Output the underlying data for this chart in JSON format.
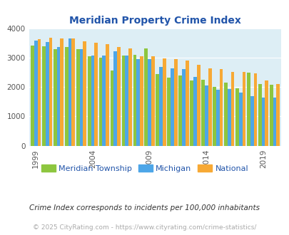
{
  "title": "Meridian Property Crime Index",
  "subtitle": "Crime Index corresponds to incidents per 100,000 inhabitants",
  "footer": "© 2025 CityRating.com - https://www.cityrating.com/crime-statistics/",
  "years": [
    1999,
    2000,
    2001,
    2002,
    2003,
    2004,
    2005,
    2006,
    2007,
    2008,
    2009,
    2010,
    2011,
    2012,
    2013,
    2014,
    2015,
    2016,
    2017,
    2018,
    2019,
    2020
  ],
  "meridian": [
    3400,
    3380,
    3280,
    3350,
    3280,
    3050,
    3000,
    2550,
    3060,
    3090,
    3300,
    2450,
    2310,
    2390,
    2230,
    2250,
    2010,
    2150,
    1950,
    2490,
    2100,
    2080
  ],
  "michigan": [
    3580,
    3540,
    3350,
    3650,
    3280,
    3060,
    3080,
    3220,
    3060,
    2960,
    2950,
    2680,
    2640,
    2600,
    2340,
    2050,
    1900,
    1930,
    1810,
    1680,
    1640,
    1630
  ],
  "national": [
    3620,
    3680,
    3650,
    3650,
    3560,
    3510,
    3450,
    3360,
    3310,
    3050,
    3050,
    2980,
    2960,
    2900,
    2750,
    2640,
    2610,
    2510,
    2500,
    2460,
    2220,
    2110
  ],
  "meridian_color": "#8dc63f",
  "michigan_color": "#4da6e8",
  "national_color": "#f7a935",
  "bg_color": "#ddeef5",
  "title_color": "#2255aa",
  "subtitle_color": "#333333",
  "footer_color": "#aaaaaa",
  "legend_text_color": "#2255aa",
  "ylim": [
    0,
    4000
  ],
  "yticks": [
    0,
    1000,
    2000,
    3000,
    4000
  ],
  "xtick_years": [
    1999,
    2004,
    2009,
    2014,
    2019
  ],
  "legend_labels": [
    "Meridian Township",
    "Michigan",
    "National"
  ]
}
